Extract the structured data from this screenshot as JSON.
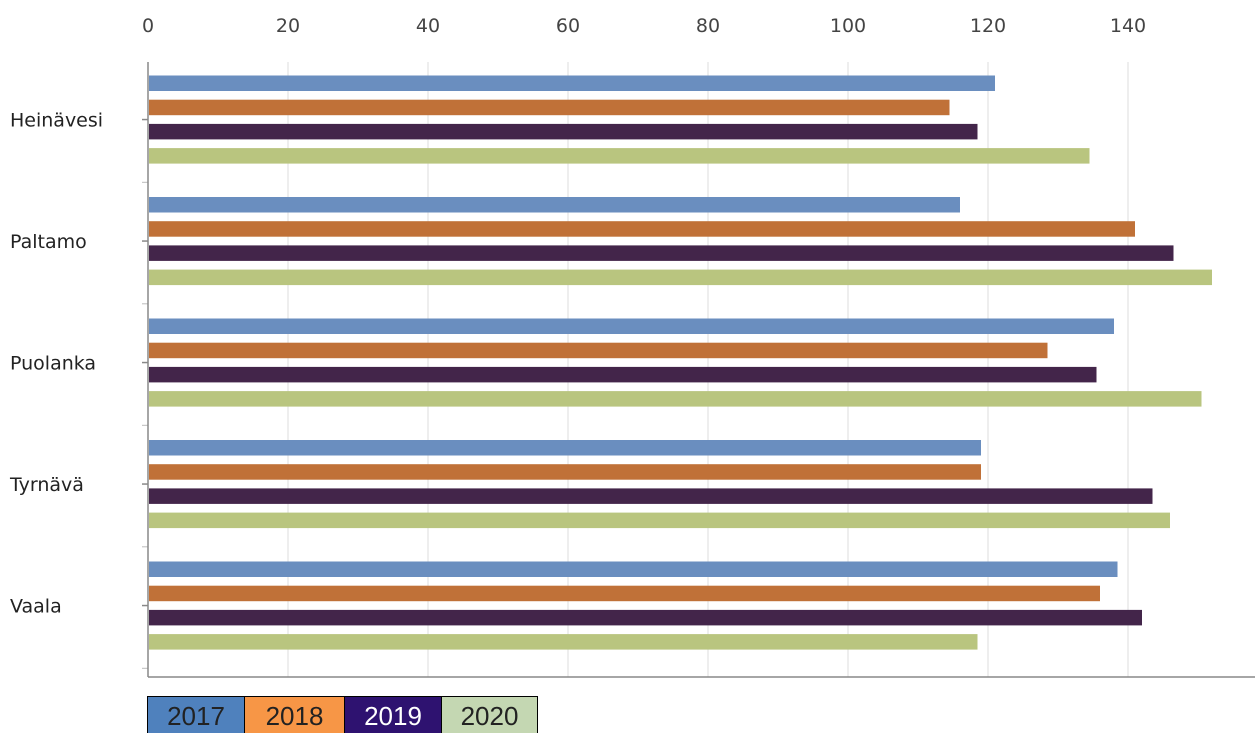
{
  "chart_data": {
    "type": "bar",
    "orientation": "horizontal",
    "categories": [
      "Heinävesi",
      "Paltamo",
      "Puolanka",
      "Tyrnävä",
      "Vaala"
    ],
    "series": [
      {
        "name": "2017",
        "color": "#6a8ebf",
        "values": [
          121,
          116,
          138,
          119,
          138.5
        ]
      },
      {
        "name": "2018",
        "color": "#c07138",
        "values": [
          114.5,
          141,
          128.5,
          119,
          136
        ]
      },
      {
        "name": "2019",
        "color": "#43254a",
        "values": [
          118.5,
          146.5,
          135.5,
          143.5,
          142
        ]
      },
      {
        "name": "2020",
        "color": "#b9c57f",
        "values": [
          134.5,
          152,
          150.5,
          146,
          118.5
        ]
      }
    ],
    "xlim": [
      0,
      158
    ],
    "xticks": [
      0,
      20,
      40,
      60,
      80,
      100,
      120,
      140
    ],
    "grid": true,
    "legend": {
      "placement": "bottom-left",
      "items": [
        {
          "label": "2017",
          "color": "#4f81bd",
          "text_color": "#222222"
        },
        {
          "label": "2018",
          "color": "#f79646",
          "text_color": "#222222"
        },
        {
          "label": "2019",
          "color": "#2e1270",
          "text_color": "#ffffff"
        },
        {
          "label": "2020",
          "color": "#c4d7b2",
          "text_color": "#222222"
        }
      ]
    }
  }
}
